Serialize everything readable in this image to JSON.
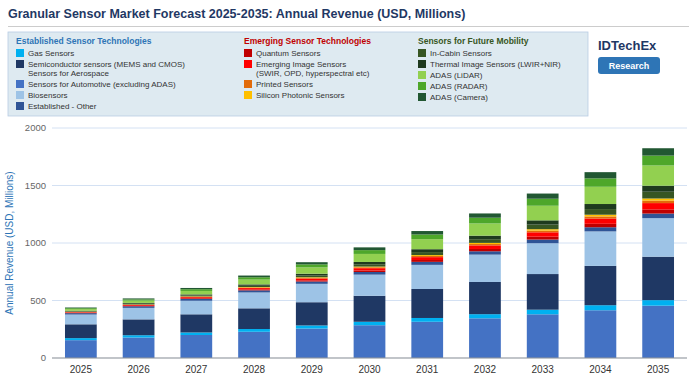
{
  "chart_data": {
    "type": "bar",
    "stacked": true,
    "title": "Granular Sensor Market Forecast 2025-2035: Annual Revenue (USD, Millions)",
    "y_label": "Annual Revenue (USD, Millions)",
    "annotations": [
      "IDTechEx",
      "Research"
    ],
    "categories": [
      "2025",
      "2026",
      "2027",
      "2028",
      "2029",
      "2030",
      "2031",
      "2032",
      "2033",
      "2034",
      "2035"
    ],
    "ylim": [
      0,
      2000
    ],
    "yticks": [
      0,
      500,
      1000,
      1500,
      2000
    ],
    "grid": true,
    "legend": "top",
    "series": [
      {
        "name": "Sensors for Automotive (excluding ADAS)",
        "color": "#4472C4",
        "values": [
          155,
          178,
          200,
          228,
          256,
          285,
          315,
          345,
          380,
          415,
          455
        ]
      },
      {
        "name": "Gas Sensors",
        "color": "#00B0F0",
        "values": [
          18,
          20,
          22,
          24,
          27,
          30,
          33,
          36,
          40,
          44,
          48
        ]
      },
      {
        "name": "Semiconductor sensors (MEMS and CMOS)\nSensors for Aerospace",
        "color": "#1F3864",
        "values": [
          120,
          138,
          158,
          180,
          202,
          226,
          252,
          280,
          310,
          342,
          378
        ]
      },
      {
        "name": "Biosensors",
        "color": "#9DC3E6",
        "values": [
          85,
          100,
          118,
          138,
          160,
          184,
          210,
          238,
          268,
          300,
          335
        ]
      },
      {
        "name": "Established - Other",
        "color": "#2F5496",
        "values": [
          12,
          14,
          16,
          18,
          20,
          23,
          26,
          29,
          32,
          36,
          40
        ]
      },
      {
        "name": "Quantum Sensors",
        "color": "#C00000",
        "values": [
          3,
          4,
          6,
          8,
          10,
          13,
          16,
          20,
          25,
          30,
          36
        ]
      },
      {
        "name": "Emerging Image Sensors\n(SWIR, OPD, hyperspectral etc)",
        "color": "#FF0000",
        "values": [
          5,
          7,
          9,
          12,
          16,
          20,
          25,
          31,
          38,
          46,
          55
        ]
      },
      {
        "name": "Printed Sensors",
        "color": "#E26B0A",
        "values": [
          2,
          3,
          4,
          5,
          6,
          8,
          10,
          12,
          15,
          18,
          22
        ]
      },
      {
        "name": "Silicon Photonic Sensors",
        "color": "#FFC000",
        "values": [
          2,
          2,
          3,
          4,
          5,
          6,
          8,
          10,
          12,
          15,
          18
        ]
      },
      {
        "name": "In-Cabin Sensors",
        "color": "#375623",
        "values": [
          4,
          6,
          8,
          11,
          15,
          20,
          26,
          32,
          40,
          49,
          59
        ]
      },
      {
        "name": "Thermal Image Sensors (LWIR+NIR)",
        "color": "#1E3A1E",
        "values": [
          5,
          7,
          9,
          12,
          16,
          20,
          25,
          31,
          37,
          44,
          52
        ]
      },
      {
        "name": "ADAS (LiDAR)",
        "color": "#92D050",
        "values": [
          14,
          20,
          30,
          42,
          55,
          70,
          87,
          106,
          127,
          150,
          176
        ]
      },
      {
        "name": "ADAS (RADAR)",
        "color": "#4EA72A",
        "values": [
          8,
          11,
          15,
          20,
          26,
          33,
          41,
          50,
          61,
          73,
          86
        ]
      },
      {
        "name": "ADAS (Camera)",
        "color": "#215732",
        "values": [
          6,
          8,
          11,
          15,
          19,
          24,
          30,
          37,
          45,
          54,
          64
        ]
      }
    ],
    "legend_groups": [
      {
        "title": "Established Sensor Technologies",
        "color": "#2E75B6",
        "series": [
          1,
          2,
          0,
          3,
          4
        ]
      },
      {
        "title": "Emerging Sensor Technologies",
        "color": "#C00000",
        "series": [
          5,
          6,
          7,
          8
        ]
      },
      {
        "title": "Sensors for Future Mobility",
        "color": "#375623",
        "series": [
          9,
          10,
          11,
          12,
          13
        ]
      }
    ]
  }
}
